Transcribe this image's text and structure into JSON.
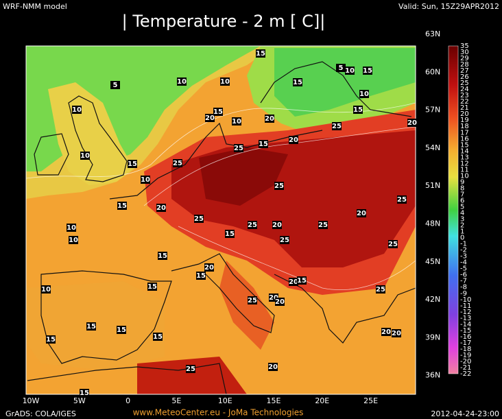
{
  "header": {
    "model": "WRF-NMM model",
    "valid": "Valid: Sun, 15Z29APR2012",
    "title": "| Temperature - 2 m [  C]|"
  },
  "lat_labels": [
    "63N",
    "60N",
    "57N",
    "54N",
    "51N",
    "48N",
    "45N",
    "42N",
    "39N",
    "36N"
  ],
  "lon_labels": [
    "10W",
    "5W",
    "0",
    "5E",
    "10E",
    "15E",
    "20E",
    "25E"
  ],
  "colorbar_labels": [
    35,
    30,
    29,
    28,
    27,
    26,
    25,
    24,
    23,
    22,
    21,
    20,
    19,
    18,
    17,
    16,
    15,
    14,
    13,
    12,
    11,
    10,
    9,
    8,
    7,
    6,
    5,
    4,
    3,
    2,
    1,
    0,
    -1,
    -2,
    -3,
    -4,
    -5,
    -6,
    -7,
    -8,
    -9,
    -10,
    -11,
    -12,
    -13,
    -14,
    -15,
    -16,
    -17,
    -18,
    -19,
    -20,
    -21,
    -22
  ],
  "contour_labels": [
    15,
    5,
    10,
    15,
    10,
    5,
    10,
    15,
    10,
    10,
    15,
    20,
    10,
    20,
    15,
    20,
    25,
    20,
    15,
    25,
    10,
    15,
    25,
    10,
    25,
    15,
    20,
    25,
    20,
    25,
    10,
    25,
    20,
    25,
    15,
    10,
    25,
    25,
    15,
    20,
    15,
    20,
    15,
    10,
    15,
    25,
    20,
    20,
    25,
    15,
    15,
    20,
    20,
    15,
    15,
    20,
    25,
    15
  ],
  "footer": {
    "left": "GrADS: COLA/IGES",
    "center": "www.MeteoCenter.eu  -  JoMa Technologies",
    "right": "2012-04-24-23:00"
  }
}
